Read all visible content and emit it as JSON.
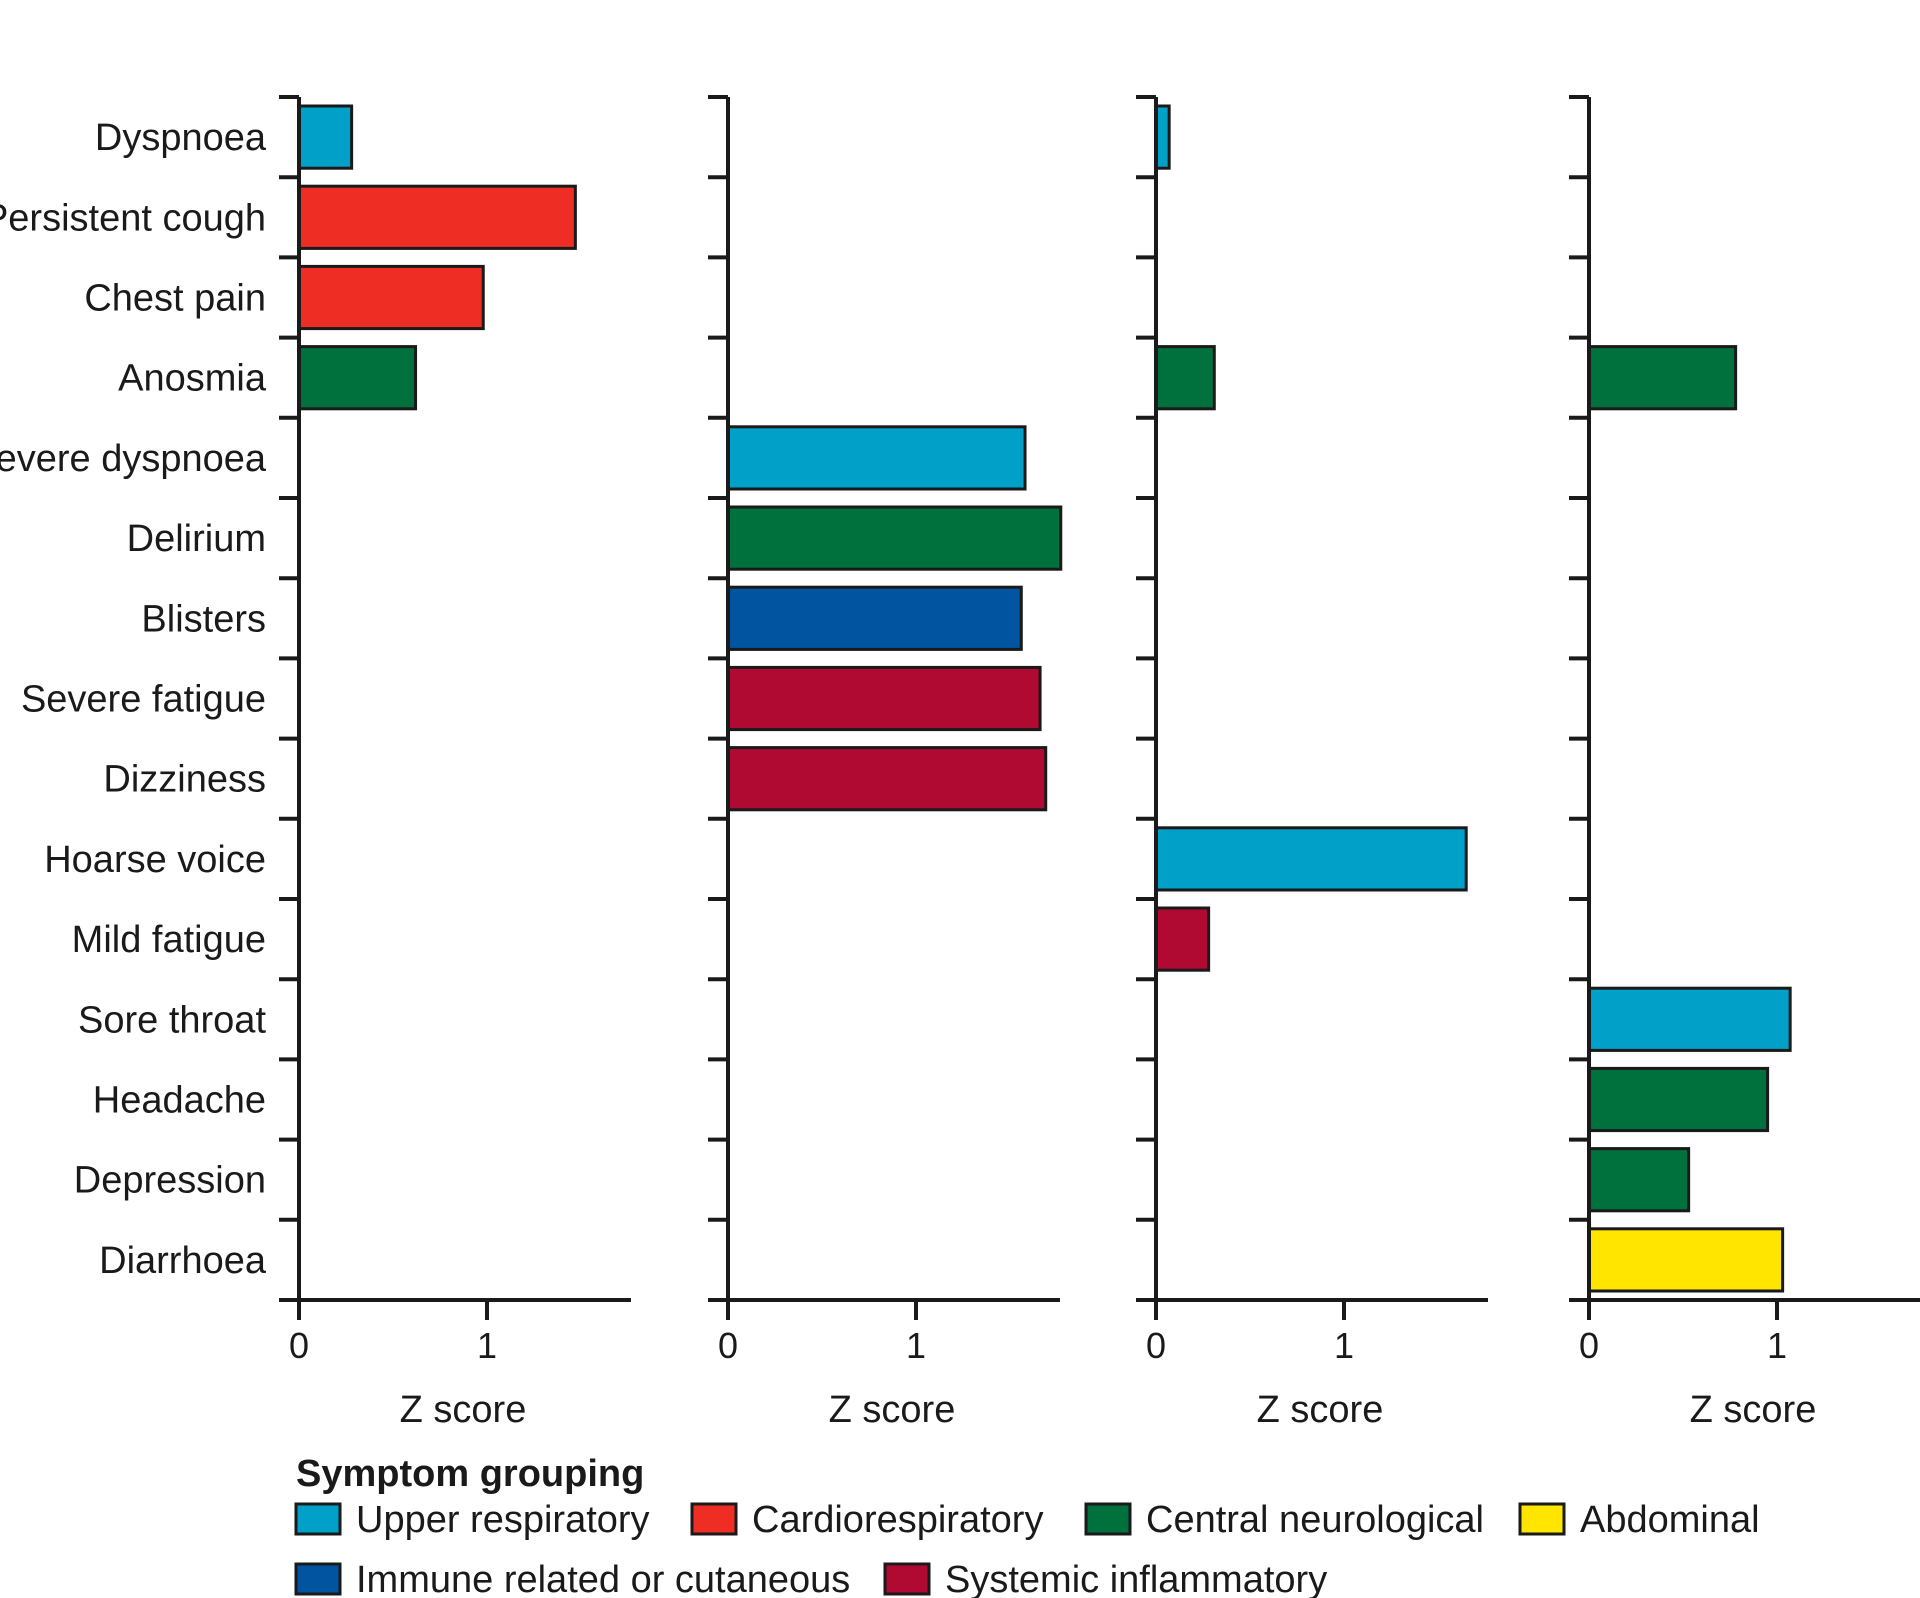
{
  "colors": {
    "upper_respiratory": "#00a0c8",
    "cardiorespiratory": "#ee2e24",
    "central_neurological": "#00703c",
    "abdominal": "#ffe500",
    "immune_cutaneous": "#0054a0",
    "systemic_inflammatory": "#b00a32",
    "axis": "#1a1a1a"
  },
  "chart_data": {
    "type": "bar",
    "orientation": "horizontal",
    "categories": [
      "Dyspnoea",
      "Persistent cough",
      "Chest pain",
      "Anosmia",
      "Severe dyspnoea",
      "Delirium",
      "Blisters",
      "Severe fatigue",
      "Dizziness",
      "Hoarse voice",
      "Mild fatigue",
      "Sore throat",
      "Headache",
      "Depression",
      "Diarrhoea"
    ],
    "panels": [
      {
        "xlabel": "Z score",
        "ticks": [
          0,
          1
        ],
        "xlim": [
          0,
          1.75
        ],
        "bars": [
          {
            "category": "Dyspnoea",
            "value": 0.28,
            "group": "upper_respiratory"
          },
          {
            "category": "Persistent cough",
            "value": 1.47,
            "group": "cardiorespiratory"
          },
          {
            "category": "Chest pain",
            "value": 0.98,
            "group": "cardiorespiratory"
          },
          {
            "category": "Anosmia",
            "value": 0.62,
            "group": "central_neurological"
          }
        ]
      },
      {
        "xlabel": "Z score",
        "ticks": [
          0,
          1
        ],
        "xlim": [
          0,
          1.75
        ],
        "bars": [
          {
            "category": "Severe dyspnoea",
            "value": 1.58,
            "group": "upper_respiratory"
          },
          {
            "category": "Delirium",
            "value": 1.77,
            "group": "central_neurological"
          },
          {
            "category": "Blisters",
            "value": 1.56,
            "group": "immune_cutaneous"
          },
          {
            "category": "Severe fatigue",
            "value": 1.66,
            "group": "systemic_inflammatory"
          },
          {
            "category": "Dizziness",
            "value": 1.69,
            "group": "systemic_inflammatory"
          }
        ]
      },
      {
        "xlabel": "Z score",
        "ticks": [
          0,
          1
        ],
        "xlim": [
          0,
          1.75
        ],
        "bars": [
          {
            "category": "Dyspnoea",
            "value": 0.07,
            "group": "upper_respiratory"
          },
          {
            "category": "Anosmia",
            "value": 0.31,
            "group": "central_neurological"
          },
          {
            "category": "Hoarse voice",
            "value": 1.65,
            "group": "upper_respiratory"
          },
          {
            "category": "Mild fatigue",
            "value": 0.28,
            "group": "systemic_inflammatory"
          }
        ]
      },
      {
        "xlabel": "Z score",
        "ticks": [
          0,
          1
        ],
        "xlim": [
          0,
          1.75
        ],
        "bars": [
          {
            "category": "Anosmia",
            "value": 0.78,
            "group": "central_neurological"
          },
          {
            "category": "Sore throat",
            "value": 1.07,
            "group": "upper_respiratory"
          },
          {
            "category": "Headache",
            "value": 0.95,
            "group": "central_neurological"
          },
          {
            "category": "Depression",
            "value": 0.53,
            "group": "central_neurological"
          },
          {
            "category": "Diarrhoea",
            "value": 1.03,
            "group": "abdominal"
          }
        ]
      }
    ],
    "legend": {
      "title": "Symptom grouping",
      "placement": "bottom",
      "entries": [
        {
          "key": "upper_respiratory",
          "label": "Upper respiratory"
        },
        {
          "key": "cardiorespiratory",
          "label": "Cardiorespiratory"
        },
        {
          "key": "central_neurological",
          "label": "Central neurological"
        },
        {
          "key": "abdominal",
          "label": "Abdominal"
        },
        {
          "key": "immune_cutaneous",
          "label": "Immune related or cutaneous"
        },
        {
          "key": "systemic_inflammatory",
          "label": "Systemic inflammatory"
        }
      ]
    }
  }
}
